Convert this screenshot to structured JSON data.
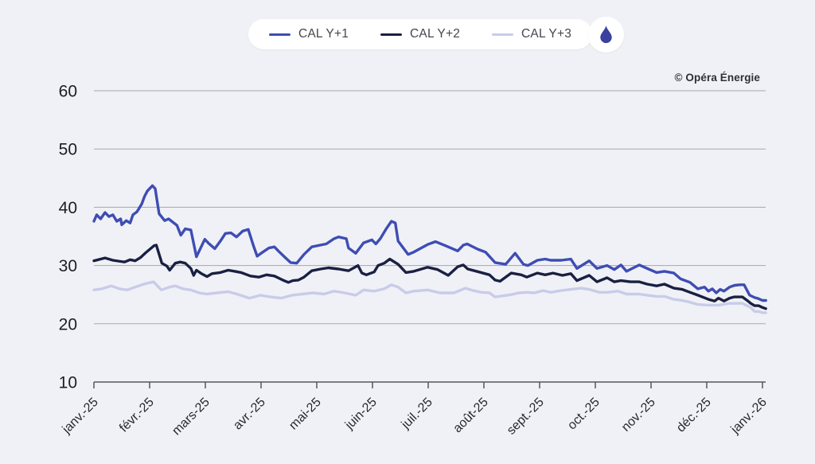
{
  "attribution": "© Opéra Énergie",
  "colors": {
    "background": "#f0f1f6",
    "grid": "#a6a7ae",
    "axis": "#55565c",
    "cal_y1": "#3e4db3",
    "cal_y2": "#1a2042",
    "cal_y3": "#c8cce9",
    "flame": "#3a429e"
  },
  "legend": {
    "items": [
      {
        "label": "CAL Y+1",
        "color": "#3e4db3"
      },
      {
        "label": "CAL Y+2",
        "color": "#1a2042"
      },
      {
        "label": "CAL Y+3",
        "color": "#c8cce9"
      }
    ],
    "logo_icon": "flame-icon"
  },
  "chart_data": {
    "type": "line",
    "title": "",
    "xlabel": "",
    "ylabel": "",
    "grid": "horizontal",
    "legend_position": "top-center",
    "x_unit": "months since 1 janv. 2025",
    "xlim": [
      0,
      12.07
    ],
    "ylim": [
      10,
      62
    ],
    "y_ticks": [
      10,
      20,
      30,
      40,
      50,
      60
    ],
    "x_tick_labels": [
      "janv.-25",
      "févr.-25",
      "mars-25",
      "avr.-25",
      "mai-25",
      "juin-25",
      "juil.-25",
      "août-25",
      "sept.-25",
      "oct.-25",
      "nov.-25",
      "déc.-25",
      "janv.-26"
    ],
    "series": [
      {
        "name": "CAL Y+1",
        "color": "#3e4db3",
        "points": [
          [
            0,
            37.6
          ],
          [
            0.05,
            38.7
          ],
          [
            0.12,
            38
          ],
          [
            0.2,
            39.1
          ],
          [
            0.27,
            38.4
          ],
          [
            0.34,
            38.7
          ],
          [
            0.41,
            37.6
          ],
          [
            0.48,
            38
          ],
          [
            0.5,
            37
          ],
          [
            0.58,
            37.7
          ],
          [
            0.65,
            37.3
          ],
          [
            0.7,
            38.7
          ],
          [
            0.77,
            39.2
          ],
          [
            0.81,
            39.8
          ],
          [
            0.86,
            40.6
          ],
          [
            0.91,
            41.9
          ],
          [
            0.96,
            42.8
          ],
          [
            1.05,
            43.7
          ],
          [
            1.1,
            43.2
          ],
          [
            1.17,
            38.9
          ],
          [
            1.27,
            37.7
          ],
          [
            1.34,
            38
          ],
          [
            1.49,
            36.9
          ],
          [
            1.56,
            35.2
          ],
          [
            1.64,
            36.3
          ],
          [
            1.74,
            36.1
          ],
          [
            1.84,
            31.5
          ],
          [
            1.99,
            34.5
          ],
          [
            2.06,
            33.8
          ],
          [
            2.17,
            32.9
          ],
          [
            2.27,
            34.2
          ],
          [
            2.36,
            35.5
          ],
          [
            2.46,
            35.6
          ],
          [
            2.56,
            34.9
          ],
          [
            2.67,
            35.9
          ],
          [
            2.77,
            36.2
          ],
          [
            2.86,
            33.5
          ],
          [
            2.93,
            31.6
          ],
          [
            3.03,
            32.3
          ],
          [
            3.14,
            33
          ],
          [
            3.24,
            33.2
          ],
          [
            3.31,
            32.5
          ],
          [
            3.43,
            31.4
          ],
          [
            3.53,
            30.5
          ],
          [
            3.64,
            30.4
          ],
          [
            3.77,
            31.9
          ],
          [
            3.91,
            33.2
          ],
          [
            4.06,
            33.5
          ],
          [
            4.17,
            33.7
          ],
          [
            4.31,
            34.6
          ],
          [
            4.39,
            34.9
          ],
          [
            4.53,
            34.6
          ],
          [
            4.57,
            33
          ],
          [
            4.7,
            32.1
          ],
          [
            4.84,
            33.9
          ],
          [
            4.99,
            34.4
          ],
          [
            5.06,
            33.7
          ],
          [
            5.14,
            34.6
          ],
          [
            5.24,
            36.2
          ],
          [
            5.34,
            37.6
          ],
          [
            5.41,
            37.3
          ],
          [
            5.46,
            34.2
          ],
          [
            5.64,
            31.9
          ],
          [
            5.74,
            32.3
          ],
          [
            5.99,
            33.6
          ],
          [
            6.13,
            34.1
          ],
          [
            6.31,
            33.4
          ],
          [
            6.53,
            32.5
          ],
          [
            6.63,
            33.5
          ],
          [
            6.7,
            33.7
          ],
          [
            6.89,
            32.8
          ],
          [
            7.03,
            32.3
          ],
          [
            7.2,
            30.5
          ],
          [
            7.39,
            30.2
          ],
          [
            7.56,
            32.1
          ],
          [
            7.71,
            30.2
          ],
          [
            7.79,
            30
          ],
          [
            7.96,
            30.9
          ],
          [
            8.1,
            31.1
          ],
          [
            8.2,
            30.9
          ],
          [
            8.39,
            30.9
          ],
          [
            8.56,
            31.1
          ],
          [
            8.67,
            29.5
          ],
          [
            8.89,
            30.8
          ],
          [
            9.03,
            29.5
          ],
          [
            9.21,
            30
          ],
          [
            9.34,
            29.3
          ],
          [
            9.46,
            30.1
          ],
          [
            9.56,
            29
          ],
          [
            9.79,
            30.1
          ],
          [
            9.93,
            29.5
          ],
          [
            10.1,
            28.8
          ],
          [
            10.24,
            29
          ],
          [
            10.41,
            28.7
          ],
          [
            10.53,
            27.7
          ],
          [
            10.7,
            27.1
          ],
          [
            10.84,
            26
          ],
          [
            10.96,
            26.3
          ],
          [
            11.03,
            25.6
          ],
          [
            11.1,
            26
          ],
          [
            11.17,
            25.3
          ],
          [
            11.24,
            25.9
          ],
          [
            11.31,
            25.6
          ],
          [
            11.41,
            26.3
          ],
          [
            11.5,
            26.6
          ],
          [
            11.6,
            26.7
          ],
          [
            11.67,
            26.7
          ],
          [
            11.77,
            24.9
          ],
          [
            11.86,
            24.5
          ],
          [
            11.93,
            24.3
          ],
          [
            12,
            24
          ],
          [
            12.06,
            24
          ]
        ]
      },
      {
        "name": "CAL Y+2",
        "color": "#1a2042",
        "points": [
          [
            0,
            30.8
          ],
          [
            0.2,
            31.3
          ],
          [
            0.34,
            30.9
          ],
          [
            0.48,
            30.7
          ],
          [
            0.55,
            30.6
          ],
          [
            0.65,
            31
          ],
          [
            0.74,
            30.8
          ],
          [
            0.84,
            31.4
          ],
          [
            0.93,
            32.2
          ],
          [
            1.08,
            33.4
          ],
          [
            1.12,
            33.5
          ],
          [
            1.22,
            30.4
          ],
          [
            1.31,
            29.9
          ],
          [
            1.36,
            29.2
          ],
          [
            1.46,
            30.4
          ],
          [
            1.55,
            30.6
          ],
          [
            1.64,
            30.4
          ],
          [
            1.74,
            29.5
          ],
          [
            1.79,
            28.3
          ],
          [
            1.84,
            29.2
          ],
          [
            1.93,
            28.6
          ],
          [
            2.03,
            28.1
          ],
          [
            2.12,
            28.6
          ],
          [
            2.27,
            28.8
          ],
          [
            2.41,
            29.2
          ],
          [
            2.53,
            29
          ],
          [
            2.64,
            28.8
          ],
          [
            2.81,
            28.2
          ],
          [
            2.96,
            28
          ],
          [
            3.1,
            28.4
          ],
          [
            3.24,
            28.2
          ],
          [
            3.39,
            27.5
          ],
          [
            3.49,
            27.1
          ],
          [
            3.57,
            27.4
          ],
          [
            3.67,
            27.5
          ],
          [
            3.77,
            28
          ],
          [
            3.91,
            29.1
          ],
          [
            4.07,
            29.4
          ],
          [
            4.21,
            29.6
          ],
          [
            4.39,
            29.4
          ],
          [
            4.57,
            29.1
          ],
          [
            4.74,
            30
          ],
          [
            4.81,
            28.7
          ],
          [
            4.89,
            28.4
          ],
          [
            5.03,
            28.9
          ],
          [
            5.1,
            30
          ],
          [
            5.21,
            30.4
          ],
          [
            5.31,
            31.1
          ],
          [
            5.46,
            30.2
          ],
          [
            5.6,
            28.8
          ],
          [
            5.74,
            29
          ],
          [
            5.99,
            29.7
          ],
          [
            6.17,
            29.3
          ],
          [
            6.36,
            28.3
          ],
          [
            6.53,
            29.8
          ],
          [
            6.63,
            30.1
          ],
          [
            6.71,
            29.4
          ],
          [
            6.91,
            28.9
          ],
          [
            7.1,
            28.4
          ],
          [
            7.2,
            27.5
          ],
          [
            7.29,
            27.3
          ],
          [
            7.49,
            28.7
          ],
          [
            7.67,
            28.4
          ],
          [
            7.77,
            28
          ],
          [
            7.96,
            28.7
          ],
          [
            8.1,
            28.4
          ],
          [
            8.24,
            28.7
          ],
          [
            8.41,
            28.3
          ],
          [
            8.56,
            28.6
          ],
          [
            8.67,
            27.4
          ],
          [
            8.89,
            28.3
          ],
          [
            9.03,
            27.2
          ],
          [
            9.21,
            27.9
          ],
          [
            9.34,
            27.2
          ],
          [
            9.46,
            27.4
          ],
          [
            9.63,
            27.2
          ],
          [
            9.79,
            27.2
          ],
          [
            9.93,
            26.8
          ],
          [
            10.1,
            26.5
          ],
          [
            10.24,
            26.8
          ],
          [
            10.41,
            26.1
          ],
          [
            10.56,
            25.9
          ],
          [
            10.7,
            25.4
          ],
          [
            10.84,
            24.9
          ],
          [
            11.03,
            24.2
          ],
          [
            11.14,
            23.9
          ],
          [
            11.21,
            24.4
          ],
          [
            11.31,
            23.9
          ],
          [
            11.41,
            24.4
          ],
          [
            11.49,
            24.6
          ],
          [
            11.64,
            24.6
          ],
          [
            11.74,
            23.9
          ],
          [
            11.79,
            23.5
          ],
          [
            11.86,
            23.1
          ],
          [
            11.93,
            23.1
          ],
          [
            12,
            22.8
          ],
          [
            12.06,
            22.6
          ]
        ]
      },
      {
        "name": "CAL Y+3",
        "color": "#c8cce9",
        "points": [
          [
            0,
            25.8
          ],
          [
            0.14,
            26
          ],
          [
            0.31,
            26.5
          ],
          [
            0.46,
            26
          ],
          [
            0.6,
            25.8
          ],
          [
            0.74,
            26.3
          ],
          [
            0.93,
            26.9
          ],
          [
            1.07,
            27.2
          ],
          [
            1.21,
            25.8
          ],
          [
            1.36,
            26.3
          ],
          [
            1.46,
            26.5
          ],
          [
            1.6,
            26
          ],
          [
            1.74,
            25.8
          ],
          [
            1.89,
            25.3
          ],
          [
            2.03,
            25.1
          ],
          [
            2.21,
            25.3
          ],
          [
            2.41,
            25.5
          ],
          [
            2.6,
            25
          ],
          [
            2.79,
            24.4
          ],
          [
            2.99,
            24.9
          ],
          [
            3.17,
            24.6
          ],
          [
            3.36,
            24.4
          ],
          [
            3.56,
            24.9
          ],
          [
            3.74,
            25.1
          ],
          [
            3.93,
            25.3
          ],
          [
            4.13,
            25.1
          ],
          [
            4.31,
            25.6
          ],
          [
            4.5,
            25.3
          ],
          [
            4.7,
            24.9
          ],
          [
            4.84,
            25.8
          ],
          [
            5.03,
            25.6
          ],
          [
            5.21,
            26
          ],
          [
            5.34,
            26.7
          ],
          [
            5.46,
            26.3
          ],
          [
            5.6,
            25.3
          ],
          [
            5.74,
            25.6
          ],
          [
            5.99,
            25.8
          ],
          [
            6.21,
            25.3
          ],
          [
            6.46,
            25.3
          ],
          [
            6.67,
            26.1
          ],
          [
            6.81,
            25.7
          ],
          [
            6.96,
            25.4
          ],
          [
            7.1,
            25.3
          ],
          [
            7.2,
            24.6
          ],
          [
            7.34,
            24.8
          ],
          [
            7.49,
            25
          ],
          [
            7.63,
            25.3
          ],
          [
            7.77,
            25.4
          ],
          [
            7.91,
            25.3
          ],
          [
            8.06,
            25.7
          ],
          [
            8.2,
            25.4
          ],
          [
            8.39,
            25.7
          ],
          [
            8.56,
            25.9
          ],
          [
            8.74,
            26.1
          ],
          [
            8.89,
            25.9
          ],
          [
            9.07,
            25.4
          ],
          [
            9.21,
            25.4
          ],
          [
            9.41,
            25.6
          ],
          [
            9.56,
            25.1
          ],
          [
            9.79,
            25.1
          ],
          [
            9.93,
            24.9
          ],
          [
            10.1,
            24.7
          ],
          [
            10.24,
            24.7
          ],
          [
            10.41,
            24.2
          ],
          [
            10.56,
            24
          ],
          [
            10.7,
            23.7
          ],
          [
            10.84,
            23.3
          ],
          [
            11.03,
            23.2
          ],
          [
            11.21,
            23.2
          ],
          [
            11.41,
            23.5
          ],
          [
            11.64,
            23.5
          ],
          [
            11.79,
            22.8
          ],
          [
            11.86,
            22.1
          ],
          [
            11.93,
            22.1
          ],
          [
            12,
            21.9
          ],
          [
            12.06,
            21.9
          ]
        ]
      }
    ]
  }
}
